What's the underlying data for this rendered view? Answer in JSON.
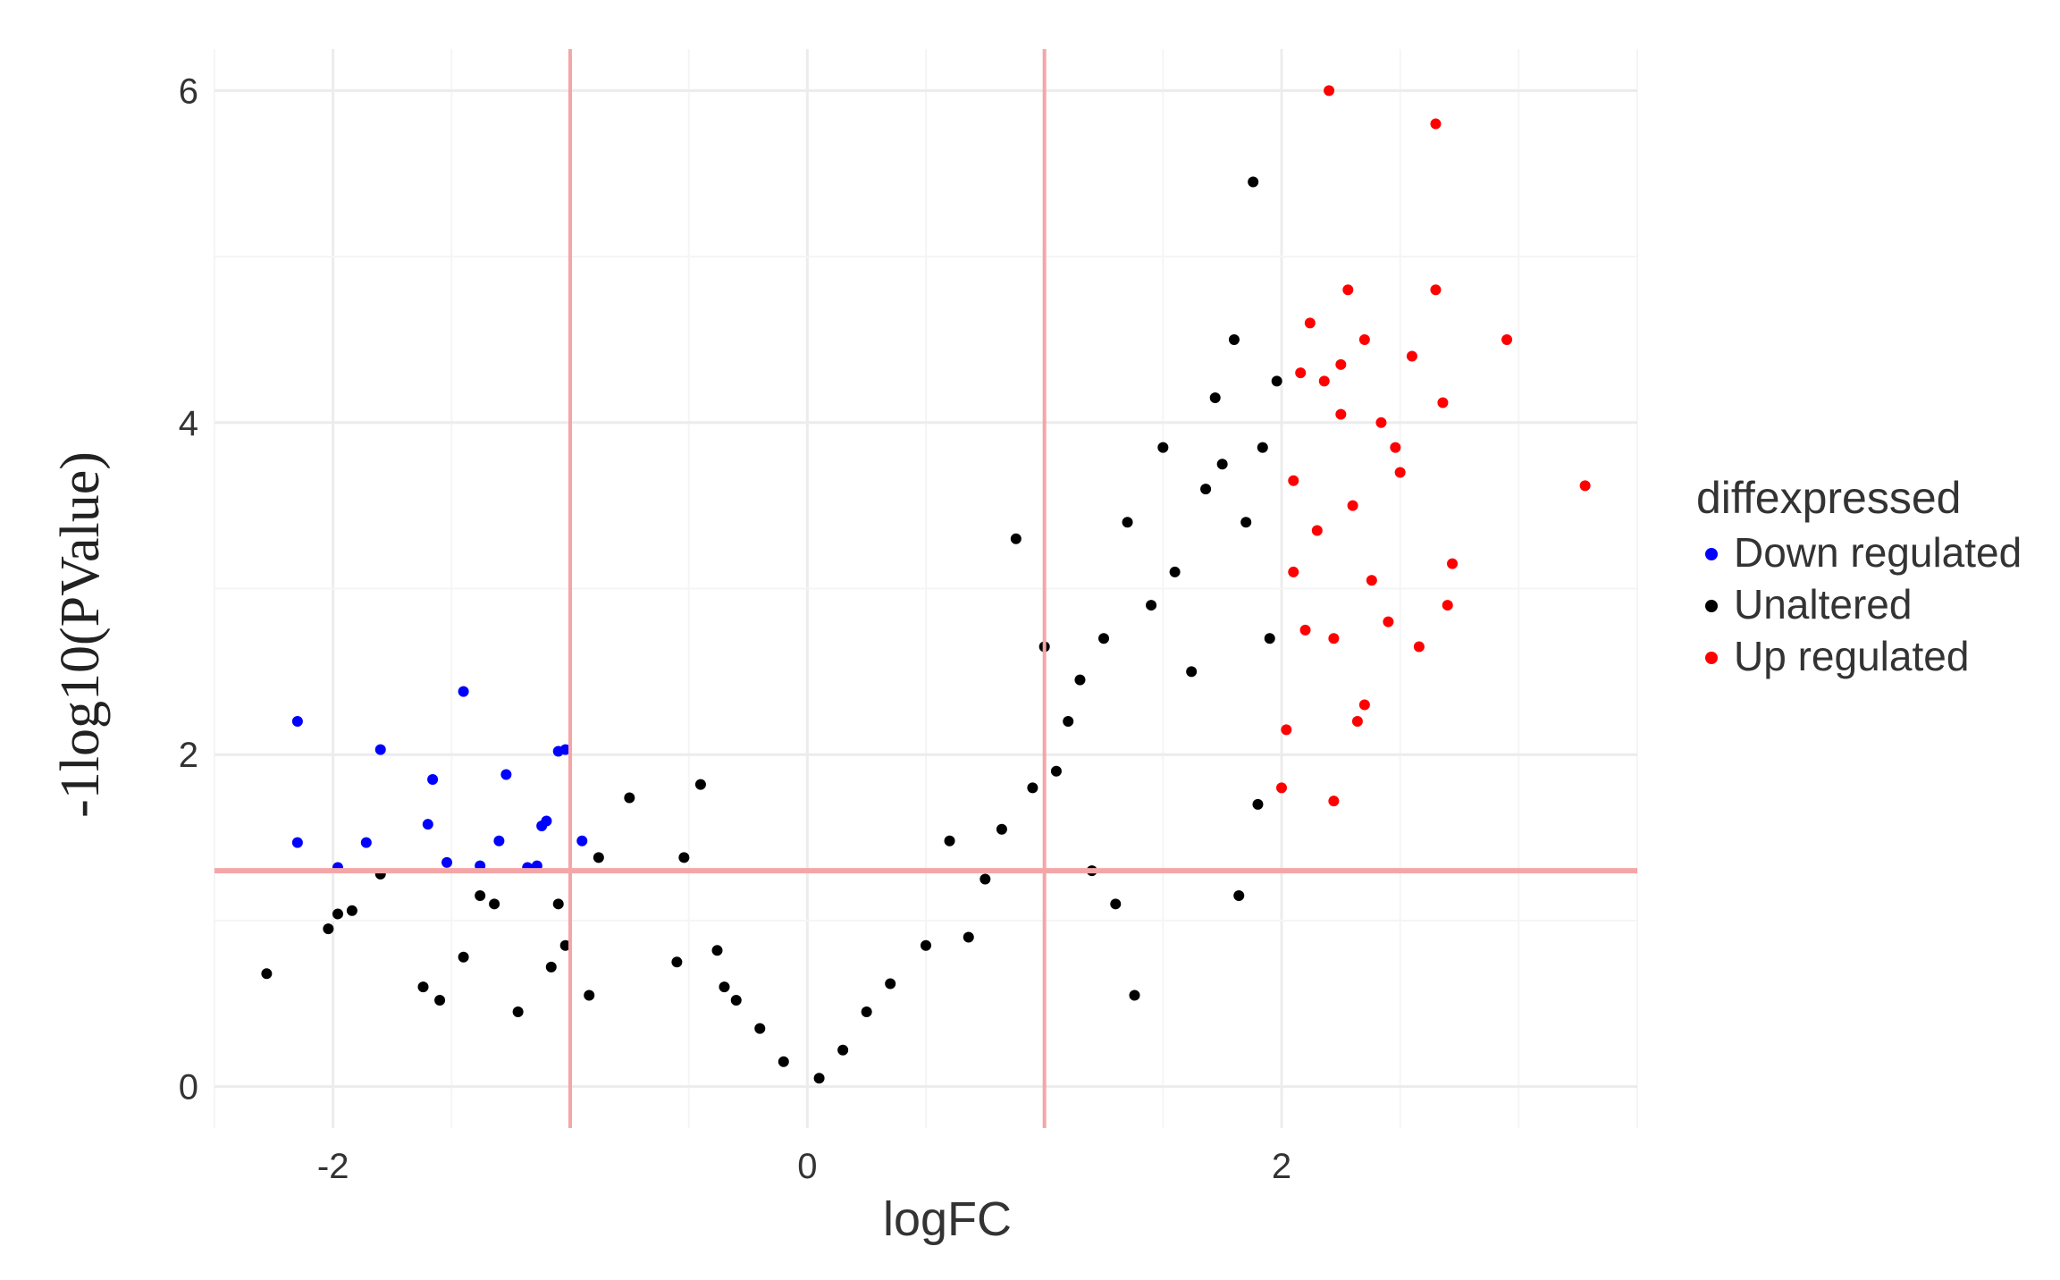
{
  "chart_data": {
    "type": "scatter",
    "title": "",
    "xlabel": "logFC",
    "ylabel": "-1log10(PValue)",
    "xlim": [
      -2.5,
      3.5
    ],
    "ylim": [
      -0.25,
      6.25
    ],
    "xticks": [
      -2,
      0,
      2
    ],
    "yticks": [
      0,
      2,
      4,
      6
    ],
    "grid": true,
    "legend_position": "right",
    "legend_title": "diffexpressed",
    "thresholds": {
      "logFC": [
        -1,
        1
      ],
      "neglog10p": 1.3,
      "color": "#f4a6a6"
    },
    "series": [
      {
        "name": "Down regulated",
        "color": "#0000ff",
        "points": [
          [
            -2.15,
            2.2
          ],
          [
            -2.15,
            1.47
          ],
          [
            -1.98,
            1.32
          ],
          [
            -1.86,
            1.47
          ],
          [
            -1.8,
            2.03
          ],
          [
            -1.58,
            1.85
          ],
          [
            -1.6,
            1.58
          ],
          [
            -1.45,
            2.38
          ],
          [
            -1.52,
            1.35
          ],
          [
            -1.38,
            1.33
          ],
          [
            -1.3,
            1.48
          ],
          [
            -1.27,
            1.88
          ],
          [
            -1.18,
            1.32
          ],
          [
            -1.14,
            1.33
          ],
          [
            -1.12,
            1.57
          ],
          [
            -1.1,
            1.6
          ],
          [
            -1.05,
            2.02
          ],
          [
            -1.02,
            2.03
          ],
          [
            -0.95,
            1.48
          ]
        ]
      },
      {
        "name": "Unaltered",
        "color": "#000000",
        "points": [
          [
            -2.28,
            0.68
          ],
          [
            -2.02,
            0.95
          ],
          [
            -1.98,
            1.04
          ],
          [
            -1.92,
            1.06
          ],
          [
            -1.8,
            1.28
          ],
          [
            -1.62,
            0.6
          ],
          [
            -1.55,
            0.52
          ],
          [
            -1.45,
            0.78
          ],
          [
            -1.38,
            1.15
          ],
          [
            -1.32,
            1.1
          ],
          [
            -1.22,
            0.45
          ],
          [
            -1.08,
            0.72
          ],
          [
            -1.02,
            0.85
          ],
          [
            -1.05,
            1.1
          ],
          [
            -0.92,
            0.55
          ],
          [
            -0.88,
            1.38
          ],
          [
            -0.75,
            1.74
          ],
          [
            -0.55,
            0.75
          ],
          [
            -0.52,
            1.38
          ],
          [
            -0.45,
            1.82
          ],
          [
            -0.38,
            0.82
          ],
          [
            -0.35,
            0.6
          ],
          [
            -0.3,
            0.52
          ],
          [
            -0.2,
            0.35
          ],
          [
            -0.1,
            0.15
          ],
          [
            0.05,
            0.05
          ],
          [
            0.15,
            0.22
          ],
          [
            0.25,
            0.45
          ],
          [
            0.35,
            0.62
          ],
          [
            0.5,
            0.85
          ],
          [
            0.6,
            1.48
          ],
          [
            0.68,
            0.9
          ],
          [
            0.75,
            1.25
          ],
          [
            0.82,
            1.55
          ],
          [
            0.88,
            3.3
          ],
          [
            0.95,
            1.8
          ],
          [
            1.0,
            2.65
          ],
          [
            1.05,
            1.9
          ],
          [
            1.1,
            2.2
          ],
          [
            1.15,
            2.45
          ],
          [
            1.2,
            1.3
          ],
          [
            1.25,
            2.7
          ],
          [
            1.3,
            1.1
          ],
          [
            1.35,
            3.4
          ],
          [
            1.38,
            0.55
          ],
          [
            1.45,
            2.9
          ],
          [
            1.5,
            3.85
          ],
          [
            1.55,
            3.1
          ],
          [
            1.62,
            2.5
          ],
          [
            1.68,
            3.6
          ],
          [
            1.72,
            4.15
          ],
          [
            1.75,
            3.75
          ],
          [
            1.8,
            4.5
          ],
          [
            1.85,
            3.4
          ],
          [
            1.88,
            5.45
          ],
          [
            1.92,
            3.85
          ],
          [
            1.95,
            2.7
          ],
          [
            1.98,
            4.25
          ],
          [
            1.9,
            1.7
          ],
          [
            1.82,
            1.15
          ]
        ]
      },
      {
        "name": "Up regulated",
        "color": "#ff0000",
        "points": [
          [
            2.0,
            1.8
          ],
          [
            2.02,
            2.15
          ],
          [
            2.05,
            3.1
          ],
          [
            2.05,
            3.65
          ],
          [
            2.08,
            4.3
          ],
          [
            2.1,
            2.75
          ],
          [
            2.12,
            4.6
          ],
          [
            2.15,
            3.35
          ],
          [
            2.18,
            4.25
          ],
          [
            2.2,
            6.0
          ],
          [
            2.22,
            1.72
          ],
          [
            2.22,
            2.7
          ],
          [
            2.25,
            4.05
          ],
          [
            2.25,
            4.35
          ],
          [
            2.28,
            4.8
          ],
          [
            2.3,
            3.5
          ],
          [
            2.32,
            2.2
          ],
          [
            2.35,
            2.3
          ],
          [
            2.35,
            4.5
          ],
          [
            2.38,
            3.05
          ],
          [
            2.42,
            4.0
          ],
          [
            2.45,
            2.8
          ],
          [
            2.48,
            3.85
          ],
          [
            2.5,
            3.7
          ],
          [
            2.55,
            4.4
          ],
          [
            2.58,
            2.65
          ],
          [
            2.65,
            5.8
          ],
          [
            2.65,
            4.8
          ],
          [
            2.68,
            4.12
          ],
          [
            2.7,
            2.9
          ],
          [
            2.72,
            3.15
          ],
          [
            2.95,
            4.5
          ],
          [
            3.28,
            3.62
          ]
        ]
      }
    ]
  }
}
